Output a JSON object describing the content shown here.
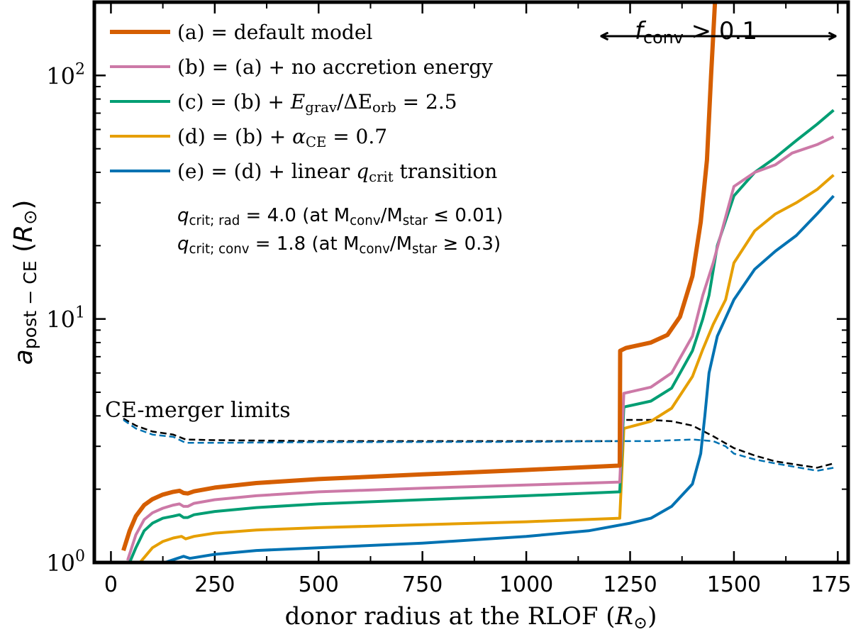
{
  "chart_data": {
    "type": "line",
    "xlabel": {
      "main": "donor radius at the RLOF (",
      "sym": "R",
      "sub": "⊙",
      "close": ")"
    },
    "ylabel": {
      "main": "a",
      "sub": "post − CE",
      "paren": " (",
      "sym": "R",
      "sub2": "⊙",
      "close": ")"
    },
    "xlim": [
      -40,
      1775
    ],
    "ylim": [
      1,
      200
    ],
    "yscale": "log",
    "xticks": [
      0,
      250,
      500,
      750,
      1000,
      1250,
      1500,
      1750
    ],
    "yticks": [
      {
        "value": 1,
        "base": "10",
        "exp": "0"
      },
      {
        "value": 10,
        "base": "10",
        "exp": "1"
      },
      {
        "value": 100,
        "base": "10",
        "exp": "2"
      }
    ],
    "legend": {
      "placement": "top-left",
      "entries": [
        {
          "key": "a",
          "parts": [
            {
              "t": "(a) = default model"
            }
          ]
        },
        {
          "key": "b",
          "parts": [
            {
              "t": "(b) = (a) + no accretion energy"
            }
          ]
        },
        {
          "key": "c",
          "parts": [
            {
              "t": "(c) = (b) + "
            },
            {
              "t": "E",
              "it": true
            },
            {
              "t": "grav",
              "sub": true
            },
            {
              "t": "/ΔE",
              "it": false
            },
            {
              "t": "orb",
              "sub": true
            },
            {
              "t": " = 2.5"
            }
          ]
        },
        {
          "key": "d",
          "parts": [
            {
              "t": "(d) = (b) + "
            },
            {
              "t": "α",
              "it": true
            },
            {
              "t": "CE",
              "sub": true
            },
            {
              "t": " = 0.7"
            }
          ]
        },
        {
          "key": "e",
          "parts": [
            {
              "t": "(e) = (d) + linear "
            },
            {
              "t": "q",
              "it": true
            },
            {
              "t": "crit",
              "sub": true
            },
            {
              "t": " transition"
            }
          ]
        }
      ]
    },
    "annotations": {
      "qcrit_rad": {
        "parts": [
          {
            "t": "q",
            "it": true
          },
          {
            "t": "crit; rad",
            "sub": true
          },
          {
            "t": " = 4.0  (at M"
          },
          {
            "t": "conv",
            "sub": true
          },
          {
            "t": "/M"
          },
          {
            "t": "star",
            "sub": true
          },
          {
            "t": " ≤ 0.01)"
          }
        ]
      },
      "qcrit_conv": {
        "parts": [
          {
            "t": "q",
            "it": true
          },
          {
            "t": "crit; conv",
            "sub": true
          },
          {
            "t": " = 1.8  (at M"
          },
          {
            "t": "conv",
            "sub": true
          },
          {
            "t": "/M"
          },
          {
            "t": "star",
            "sub": true
          },
          {
            "t": " ≥ 0.3)"
          }
        ]
      },
      "fconv": {
        "parts": [
          {
            "t": "f",
            "it": true
          },
          {
            "t": "conv",
            "sub": true
          },
          {
            "t": " > 0.1"
          }
        ],
        "x_range": [
          1180,
          1745
        ],
        "y": 145
      },
      "merger_label": "CE-merger limits"
    },
    "colors": {
      "a": "#d55e00",
      "b": "#cc79a7",
      "c": "#009e73",
      "d": "#e69f00",
      "e": "#0072b2",
      "limit_default": "#000000",
      "limit_alt": "#0072b2"
    },
    "series": [
      {
        "key": "a",
        "points": [
          [
            30,
            1.12
          ],
          [
            45,
            1.35
          ],
          [
            60,
            1.55
          ],
          [
            80,
            1.72
          ],
          [
            100,
            1.82
          ],
          [
            125,
            1.9
          ],
          [
            150,
            1.95
          ],
          [
            165,
            1.97
          ],
          [
            175,
            1.93
          ],
          [
            185,
            1.92
          ],
          [
            200,
            1.96
          ],
          [
            250,
            2.03
          ],
          [
            350,
            2.12
          ],
          [
            500,
            2.2
          ],
          [
            750,
            2.3
          ],
          [
            1000,
            2.4
          ],
          [
            1225,
            2.5
          ],
          [
            1226,
            7.4
          ],
          [
            1240,
            7.6
          ],
          [
            1300,
            8.0
          ],
          [
            1340,
            8.6
          ],
          [
            1370,
            10.2
          ],
          [
            1400,
            15
          ],
          [
            1420,
            25
          ],
          [
            1435,
            45
          ],
          [
            1445,
            100
          ],
          [
            1455,
            210
          ]
        ]
      },
      {
        "key": "b",
        "points": [
          [
            40,
            1.02
          ],
          [
            60,
            1.3
          ],
          [
            80,
            1.5
          ],
          [
            100,
            1.6
          ],
          [
            125,
            1.67
          ],
          [
            150,
            1.72
          ],
          [
            165,
            1.74
          ],
          [
            175,
            1.7
          ],
          [
            185,
            1.7
          ],
          [
            200,
            1.75
          ],
          [
            250,
            1.81
          ],
          [
            350,
            1.88
          ],
          [
            500,
            1.95
          ],
          [
            750,
            2.02
          ],
          [
            1000,
            2.08
          ],
          [
            1225,
            2.14
          ],
          [
            1235,
            4.95
          ],
          [
            1300,
            5.25
          ],
          [
            1350,
            6.0
          ],
          [
            1400,
            8.5
          ],
          [
            1425,
            12.5
          ],
          [
            1450,
            17
          ],
          [
            1500,
            35
          ],
          [
            1550,
            40
          ],
          [
            1600,
            43
          ],
          [
            1640,
            48
          ],
          [
            1700,
            52
          ],
          [
            1740,
            56
          ]
        ]
      },
      {
        "key": "c",
        "points": [
          [
            45,
            1.0
          ],
          [
            60,
            1.15
          ],
          [
            80,
            1.35
          ],
          [
            100,
            1.45
          ],
          [
            125,
            1.52
          ],
          [
            150,
            1.55
          ],
          [
            165,
            1.57
          ],
          [
            175,
            1.53
          ],
          [
            185,
            1.53
          ],
          [
            200,
            1.57
          ],
          [
            250,
            1.62
          ],
          [
            350,
            1.68
          ],
          [
            500,
            1.74
          ],
          [
            750,
            1.81
          ],
          [
            1000,
            1.88
          ],
          [
            1225,
            1.95
          ],
          [
            1235,
            4.35
          ],
          [
            1300,
            4.6
          ],
          [
            1350,
            5.2
          ],
          [
            1400,
            7.4
          ],
          [
            1425,
            10
          ],
          [
            1440,
            12.5
          ],
          [
            1460,
            20
          ],
          [
            1500,
            32
          ],
          [
            1550,
            40
          ],
          [
            1600,
            46
          ],
          [
            1650,
            54
          ],
          [
            1700,
            63
          ],
          [
            1740,
            72
          ]
        ]
      },
      {
        "key": "d",
        "points": [
          [
            70,
            1.0
          ],
          [
            100,
            1.15
          ],
          [
            125,
            1.22
          ],
          [
            150,
            1.26
          ],
          [
            170,
            1.28
          ],
          [
            180,
            1.25
          ],
          [
            200,
            1.28
          ],
          [
            250,
            1.32
          ],
          [
            350,
            1.36
          ],
          [
            500,
            1.39
          ],
          [
            750,
            1.43
          ],
          [
            1000,
            1.47
          ],
          [
            1225,
            1.52
          ],
          [
            1235,
            3.55
          ],
          [
            1300,
            3.8
          ],
          [
            1350,
            4.3
          ],
          [
            1400,
            5.8
          ],
          [
            1425,
            7.5
          ],
          [
            1450,
            9.5
          ],
          [
            1480,
            12
          ],
          [
            1500,
            17
          ],
          [
            1550,
            23
          ],
          [
            1600,
            27
          ],
          [
            1650,
            30
          ],
          [
            1700,
            34
          ],
          [
            1740,
            39
          ]
        ]
      },
      {
        "key": "e",
        "points": [
          [
            130,
            1.0
          ],
          [
            160,
            1.04
          ],
          [
            175,
            1.06
          ],
          [
            190,
            1.04
          ],
          [
            250,
            1.08
          ],
          [
            350,
            1.12
          ],
          [
            500,
            1.15
          ],
          [
            750,
            1.2
          ],
          [
            1000,
            1.28
          ],
          [
            1150,
            1.35
          ],
          [
            1250,
            1.45
          ],
          [
            1300,
            1.52
          ],
          [
            1350,
            1.7
          ],
          [
            1400,
            2.1
          ],
          [
            1420,
            2.8
          ],
          [
            1430,
            4
          ],
          [
            1440,
            6
          ],
          [
            1460,
            8.5
          ],
          [
            1500,
            12
          ],
          [
            1550,
            16
          ],
          [
            1600,
            19
          ],
          [
            1650,
            22
          ],
          [
            1700,
            27
          ],
          [
            1740,
            32
          ]
        ]
      }
    ],
    "limits": [
      {
        "key": "limit_default",
        "points": [
          [
            30,
            3.9
          ],
          [
            60,
            3.65
          ],
          [
            100,
            3.45
          ],
          [
            150,
            3.35
          ],
          [
            180,
            3.2
          ],
          [
            250,
            3.18
          ],
          [
            500,
            3.15
          ],
          [
            1000,
            3.15
          ],
          [
            1225,
            3.15
          ],
          [
            1230,
            3.85
          ],
          [
            1300,
            3.85
          ],
          [
            1350,
            3.8
          ],
          [
            1400,
            3.65
          ],
          [
            1450,
            3.3
          ],
          [
            1500,
            2.95
          ],
          [
            1550,
            2.75
          ],
          [
            1600,
            2.6
          ],
          [
            1700,
            2.45
          ],
          [
            1740,
            2.55
          ]
        ]
      },
      {
        "key": "limit_alt",
        "points": [
          [
            30,
            3.85
          ],
          [
            60,
            3.55
          ],
          [
            100,
            3.35
          ],
          [
            150,
            3.28
          ],
          [
            180,
            3.1
          ],
          [
            250,
            3.1
          ],
          [
            500,
            3.12
          ],
          [
            1000,
            3.13
          ],
          [
            1225,
            3.15
          ],
          [
            1300,
            3.15
          ],
          [
            1400,
            3.2
          ],
          [
            1450,
            3.15
          ],
          [
            1480,
            3.0
          ],
          [
            1500,
            2.8
          ],
          [
            1550,
            2.65
          ],
          [
            1600,
            2.55
          ],
          [
            1700,
            2.38
          ],
          [
            1740,
            2.45
          ]
        ]
      }
    ]
  }
}
